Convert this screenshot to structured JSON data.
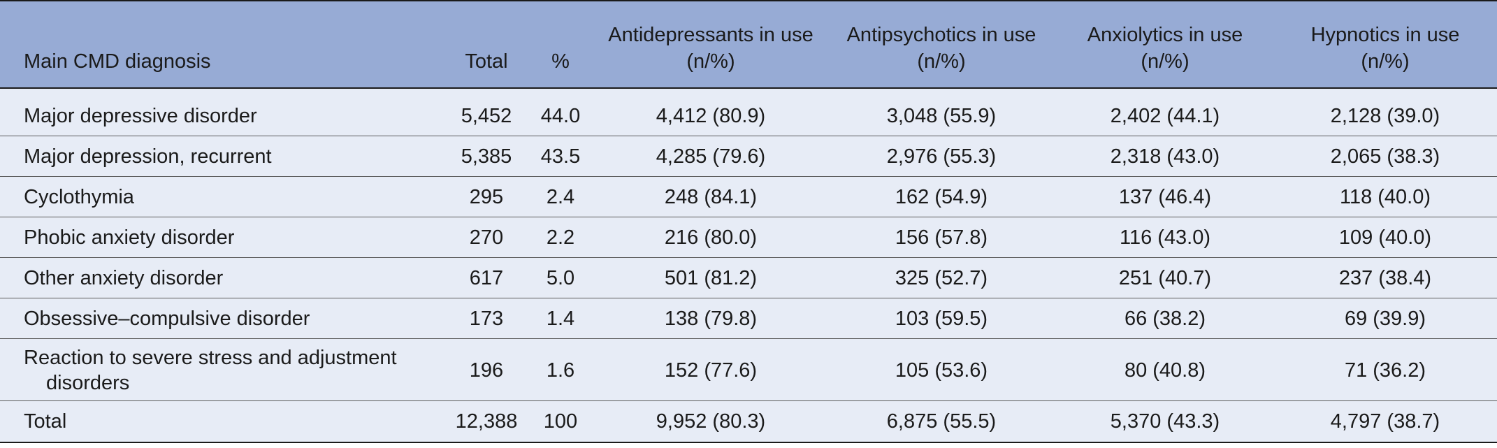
{
  "table": {
    "headers": [
      "Main CMD diagnosis",
      "Total",
      "%",
      "Antidepressants in use\n(n/%)",
      "Antipsychotics in use\n(n/%)",
      "Anxiolytics in use\n(n/%)",
      "Hypnotics in use\n(n/%)"
    ],
    "header_lines": [
      [
        "Main CMD diagnosis"
      ],
      [
        "Total"
      ],
      [
        "%"
      ],
      [
        "Antidepressants in use",
        "(n/%)"
      ],
      [
        "Antipsychotics in use",
        "(n/%)"
      ],
      [
        "Anxiolytics in use",
        "(n/%)"
      ],
      [
        "Hypnotics in use",
        "(n/%)"
      ]
    ],
    "rows": [
      [
        "Major depressive disorder",
        "5,452",
        "44.0",
        "4,412 (80.9)",
        "3,048 (55.9)",
        "2,402 (44.1)",
        "2,128 (39.0)"
      ],
      [
        "Major depression, recurrent",
        "5,385",
        "43.5",
        "4,285 (79.6)",
        "2,976 (55.3)",
        "2,318 (43.0)",
        "2,065 (38.3)"
      ],
      [
        "Cyclothymia",
        "295",
        "2.4",
        "248 (84.1)",
        "162 (54.9)",
        "137 (46.4)",
        "118 (40.0)"
      ],
      [
        "Phobic anxiety disorder",
        "270",
        "2.2",
        "216 (80.0)",
        "156 (57.8)",
        "116 (43.0)",
        "109 (40.0)"
      ],
      [
        "Other anxiety disorder",
        "617",
        "5.0",
        "501 (81.2)",
        "325 (52.7)",
        "251 (40.7)",
        "237 (38.4)"
      ],
      [
        "Obsessive–compulsive disorder",
        "173",
        "1.4",
        "138 (79.8)",
        "103 (59.5)",
        "66 (38.2)",
        "69 (39.9)"
      ],
      [
        "Reaction to severe stress and adjustment disorders",
        "196",
        "1.6",
        "152 (77.6)",
        "105 (53.6)",
        "80 (40.8)",
        "71 (36.2)"
      ]
    ],
    "total_row": [
      "Total",
      "12,388",
      "100",
      "9,952 (80.3)",
      "6,875 (55.5)",
      "5,370 (43.3)",
      "4,797 (38.7)"
    ]
  },
  "colors": {
    "header_bg": "#97abd5",
    "body_bg": "#e7ecf6",
    "rule": "#1a1a1a"
  }
}
